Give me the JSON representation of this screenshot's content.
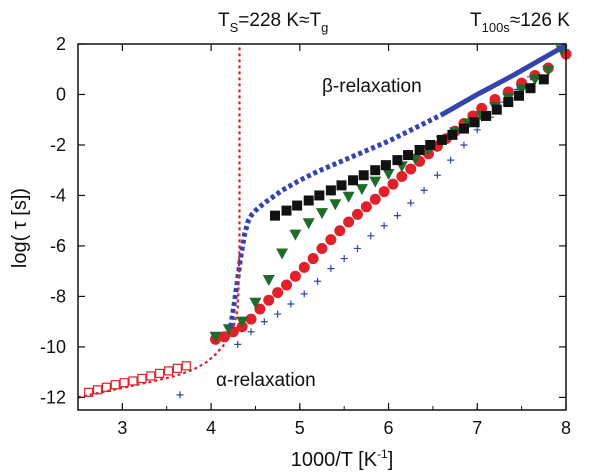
{
  "chart_data": {
    "type": "scatter",
    "title": "",
    "xlabel": "1000/T [K",
    "xlabel_sup": "-1",
    "xlabel_close": "]",
    "ylabel": "log( τ [s])",
    "xlim": [
      2.5,
      8.0
    ],
    "ylim": [
      -12.5,
      2.0
    ],
    "xticks": [
      "3",
      "4",
      "5",
      "6",
      "7",
      "8"
    ],
    "yticks": [
      "2",
      "0",
      "-2",
      "-4",
      "-6",
      "-8",
      "-10",
      "-12"
    ],
    "grid": false,
    "legend": "none",
    "annotations": {
      "top_left": {
        "a": "T",
        "b": "S",
        "c": "=228 K≈T",
        "d": "g"
      },
      "top_right": {
        "a": "T",
        "b": "100s",
        "c": "≈126 K"
      },
      "beta": "β-relaxation",
      "alpha": "α-relaxation"
    },
    "colors": {
      "red": "#e0202a",
      "blue": "#3344aa",
      "green": "#1e6b2a",
      "black": "#111111"
    },
    "series": [
      {
        "marker": "open-square",
        "color": "#e0202a",
        "x": [
          2.62,
          2.72,
          2.82,
          2.92,
          3.02,
          3.12,
          3.22,
          3.32,
          3.42,
          3.52,
          3.62,
          3.72
        ],
        "y": [
          -11.8,
          -11.7,
          -11.6,
          -11.5,
          -11.42,
          -11.35,
          -11.25,
          -11.15,
          -11.05,
          -10.95,
          -10.85,
          -10.75
        ]
      },
      {
        "marker": "cross",
        "color": "#3344aa",
        "x": [
          3.65,
          4.3,
          4.45,
          4.6,
          4.75,
          4.9,
          5.05,
          5.2,
          5.35,
          5.5,
          5.65,
          5.8,
          5.95,
          6.1,
          6.25,
          6.4,
          6.55,
          6.7,
          6.85,
          7.0,
          7.15,
          7.3,
          7.45,
          7.6
        ],
        "y": [
          -11.9,
          -9.9,
          -9.4,
          -9.0,
          -8.7,
          -8.3,
          -7.9,
          -7.4,
          -6.9,
          -6.5,
          -6.1,
          -5.6,
          -5.2,
          -4.8,
          -4.3,
          -3.8,
          -3.2,
          -2.6,
          -2.0,
          -1.4,
          -0.9,
          -0.3,
          0.2,
          0.7
        ]
      },
      {
        "marker": "filled-circle",
        "color": "#e0202a",
        "x": [
          4.05,
          4.15,
          4.25,
          4.35,
          4.45,
          4.55,
          4.65,
          4.75,
          4.85,
          4.95,
          5.05,
          5.15,
          5.25,
          5.35,
          5.45,
          5.55,
          5.65,
          5.75,
          5.85,
          5.95,
          6.05,
          6.15,
          6.25,
          6.35,
          6.45,
          6.55,
          6.65,
          6.75,
          6.85,
          6.95,
          7.05,
          7.2,
          7.35,
          7.5,
          7.65,
          7.8,
          8.0
        ],
        "y": [
          -9.7,
          -9.6,
          -9.4,
          -9.2,
          -8.9,
          -8.5,
          -8.15,
          -7.85,
          -7.55,
          -7.2,
          -6.85,
          -6.5,
          -6.1,
          -5.75,
          -5.4,
          -5.05,
          -4.75,
          -4.45,
          -4.15,
          -3.85,
          -3.55,
          -3.25,
          -2.95,
          -2.65,
          -2.35,
          -2.05,
          -1.75,
          -1.45,
          -1.15,
          -0.85,
          -0.55,
          -0.2,
          0.1,
          0.45,
          0.75,
          1.05,
          1.6
        ]
      },
      {
        "marker": "triangle-down",
        "color": "#1e6b2a",
        "x": [
          4.05,
          4.2,
          4.35,
          4.5,
          4.65,
          4.8,
          4.95,
          5.1,
          5.25,
          5.4,
          5.55,
          5.7,
          5.85,
          6.0,
          6.15,
          6.3,
          6.45,
          6.6,
          6.75,
          6.9,
          7.05,
          7.2,
          7.35,
          7.5,
          7.65,
          7.8,
          7.95
        ],
        "y": [
          -9.6,
          -9.3,
          -9.0,
          -8.25,
          -7.35,
          -6.3,
          -5.55,
          -5.1,
          -4.7,
          -4.35,
          -4.05,
          -3.75,
          -3.45,
          -3.15,
          -2.85,
          -2.55,
          -2.2,
          -1.85,
          -1.5,
          -1.15,
          -0.85,
          -0.5,
          -0.15,
          0.2,
          0.6,
          0.95,
          1.75
        ]
      },
      {
        "marker": "filled-square",
        "color": "#111111",
        "x": [
          4.72,
          4.85,
          4.97,
          5.1,
          5.22,
          5.35,
          5.47,
          5.6,
          5.72,
          5.85,
          5.97,
          6.1,
          6.22,
          6.35,
          6.47,
          6.6,
          6.72,
          6.85,
          6.97,
          7.1,
          7.22,
          7.35,
          7.47,
          7.6,
          7.75
        ],
        "y": [
          -4.8,
          -4.6,
          -4.4,
          -4.2,
          -4.0,
          -3.8,
          -3.6,
          -3.4,
          -3.2,
          -3.0,
          -2.8,
          -2.6,
          -2.4,
          -2.2,
          -2.0,
          -1.8,
          -1.6,
          -1.35,
          -1.1,
          -0.85,
          -0.6,
          -0.3,
          -0.05,
          0.25,
          0.6
        ]
      },
      {
        "marker": "dotted-line",
        "color": "#3344aa",
        "x": [
          4.22,
          4.26,
          4.3,
          4.34,
          4.38,
          4.42,
          4.46,
          4.5,
          4.55,
          4.6,
          4.7,
          4.8,
          4.9,
          5.0,
          5.2,
          5.4,
          5.6,
          5.8,
          6.0,
          6.2,
          6.4,
          6.6
        ],
        "y": [
          -9.2,
          -8.3,
          -7.3,
          -6.3,
          -5.5,
          -5.0,
          -4.75,
          -4.6,
          -4.45,
          -4.3,
          -4.05,
          -3.8,
          -3.6,
          -3.4,
          -3.05,
          -2.75,
          -2.45,
          -2.15,
          -1.85,
          -1.5,
          -1.15,
          -0.8
        ]
      },
      {
        "marker": "solid-line",
        "color": "#3344aa",
        "x": [
          6.6,
          7.0,
          7.4,
          7.8,
          8.0
        ],
        "y": [
          -0.8,
          0.0,
          0.75,
          1.55,
          1.95
        ]
      },
      {
        "marker": "dotted-line",
        "color": "#e0202a",
        "x": [
          2.5,
          2.9,
          3.3,
          3.6,
          3.8,
          3.95,
          4.05,
          4.15,
          4.22,
          4.27,
          4.3,
          4.31,
          4.32,
          4.32,
          4.32,
          4.32
        ],
        "y": [
          -12.0,
          -11.7,
          -11.4,
          -11.15,
          -10.9,
          -10.6,
          -10.3,
          -9.9,
          -9.5,
          -9.0,
          -8.5,
          -7.5,
          -6.0,
          -4.0,
          -1.0,
          2.0
        ]
      }
    ]
  }
}
